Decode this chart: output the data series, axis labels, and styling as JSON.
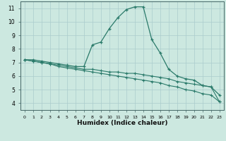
{
  "xlabel": "Humidex (Indice chaleur)",
  "bg_color": "#cce8e0",
  "grid_color": "#aacccc",
  "line_color": "#2a7a6a",
  "xlim": [
    -0.5,
    23.5
  ],
  "ylim": [
    3.5,
    11.5
  ],
  "xticks": [
    0,
    1,
    2,
    3,
    4,
    5,
    6,
    7,
    8,
    9,
    10,
    11,
    12,
    13,
    14,
    15,
    16,
    17,
    18,
    19,
    20,
    21,
    22,
    23
  ],
  "yticks": [
    4,
    5,
    6,
    7,
    8,
    9,
    10,
    11
  ],
  "series1_x": [
    0,
    1,
    2,
    3,
    4,
    5,
    6,
    7,
    8,
    9,
    10,
    11,
    12,
    13,
    14,
    15,
    16,
    17,
    18,
    19,
    20,
    21,
    22,
    23
  ],
  "series1_y": [
    7.2,
    7.2,
    7.1,
    7.0,
    6.9,
    6.8,
    6.7,
    6.7,
    8.3,
    8.5,
    9.5,
    10.3,
    10.9,
    11.1,
    11.1,
    8.7,
    7.7,
    6.5,
    6.0,
    5.8,
    5.7,
    5.3,
    5.2,
    4.6
  ],
  "series2_x": [
    0,
    1,
    2,
    3,
    4,
    5,
    6,
    7,
    8,
    9,
    10,
    11,
    12,
    13,
    14,
    15,
    16,
    17,
    18,
    19,
    20,
    21,
    22,
    23
  ],
  "series2_y": [
    7.2,
    7.1,
    7.0,
    6.9,
    6.8,
    6.7,
    6.6,
    6.5,
    6.5,
    6.4,
    6.3,
    6.3,
    6.2,
    6.2,
    6.1,
    6.0,
    5.9,
    5.8,
    5.6,
    5.5,
    5.4,
    5.3,
    5.2,
    4.1
  ],
  "series3_x": [
    0,
    1,
    2,
    3,
    4,
    5,
    6,
    7,
    8,
    9,
    10,
    11,
    12,
    13,
    14,
    15,
    16,
    17,
    18,
    19,
    20,
    21,
    22,
    23
  ],
  "series3_y": [
    7.2,
    7.1,
    7.0,
    6.9,
    6.7,
    6.6,
    6.5,
    6.4,
    6.3,
    6.2,
    6.1,
    6.0,
    5.9,
    5.8,
    5.7,
    5.6,
    5.5,
    5.3,
    5.2,
    5.0,
    4.9,
    4.7,
    4.6,
    4.1
  ]
}
